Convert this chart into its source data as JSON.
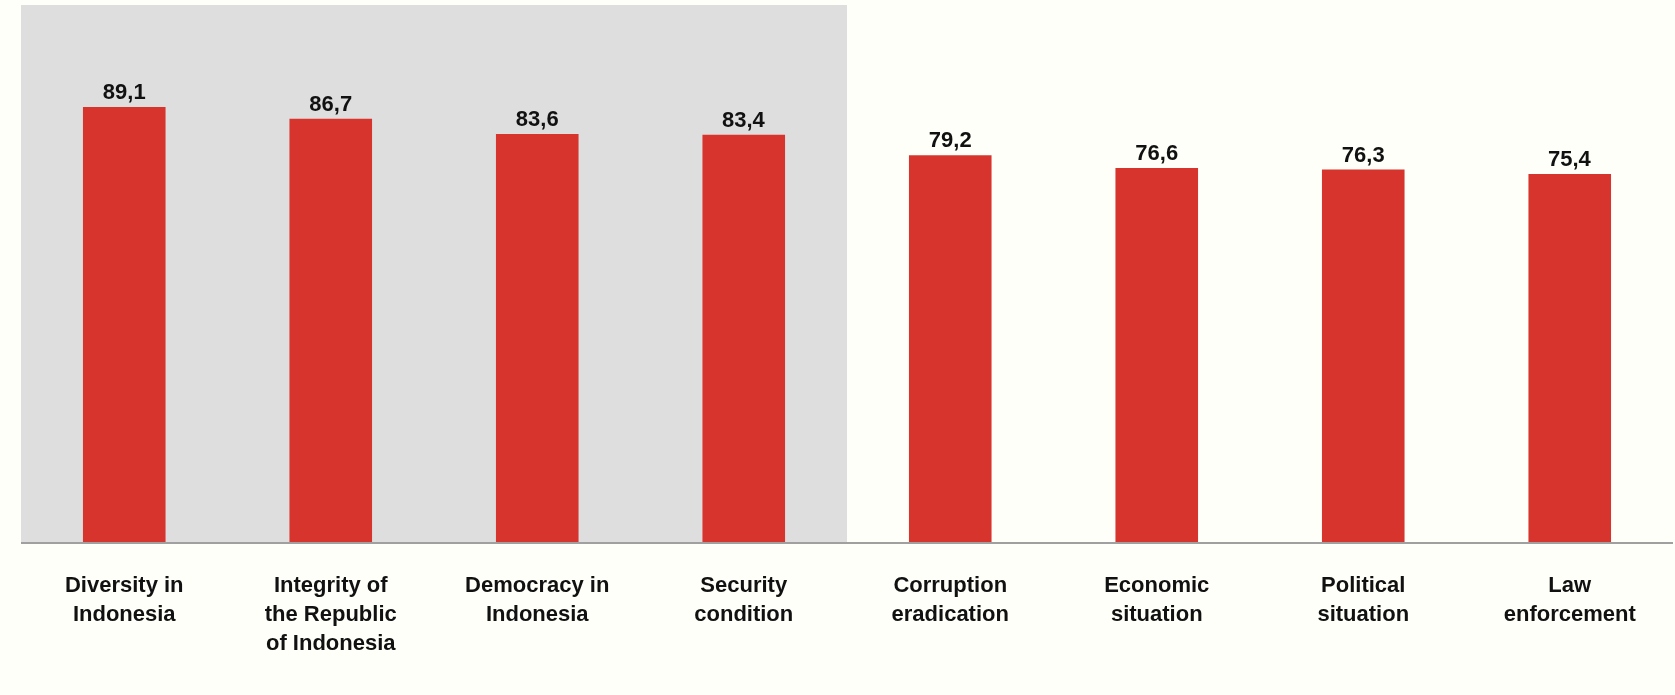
{
  "chart_data": {
    "type": "bar",
    "categories": [
      "Diversity in Indonesia",
      "Integrity of the Republic of Indonesia",
      "Democracy in Indonesia",
      "Security condition",
      "Corruption eradication",
      "Economic situation",
      "Political situation",
      "Law enforcement"
    ],
    "values": [
      89.1,
      86.7,
      83.6,
      83.4,
      79.2,
      76.6,
      76.3,
      75.4
    ],
    "value_labels": [
      "89,1",
      "86,7",
      "83,6",
      "83,4",
      "79,2",
      "76,6",
      "76,3",
      "75,4"
    ],
    "color": "#d7342e",
    "ylim": [
      0,
      110
    ],
    "tick_labels": "x",
    "bands": [
      {
        "axis": "x",
        "from": "Diversity in Indonesia",
        "to": "Security condition",
        "color": "#dedede"
      }
    ]
  }
}
